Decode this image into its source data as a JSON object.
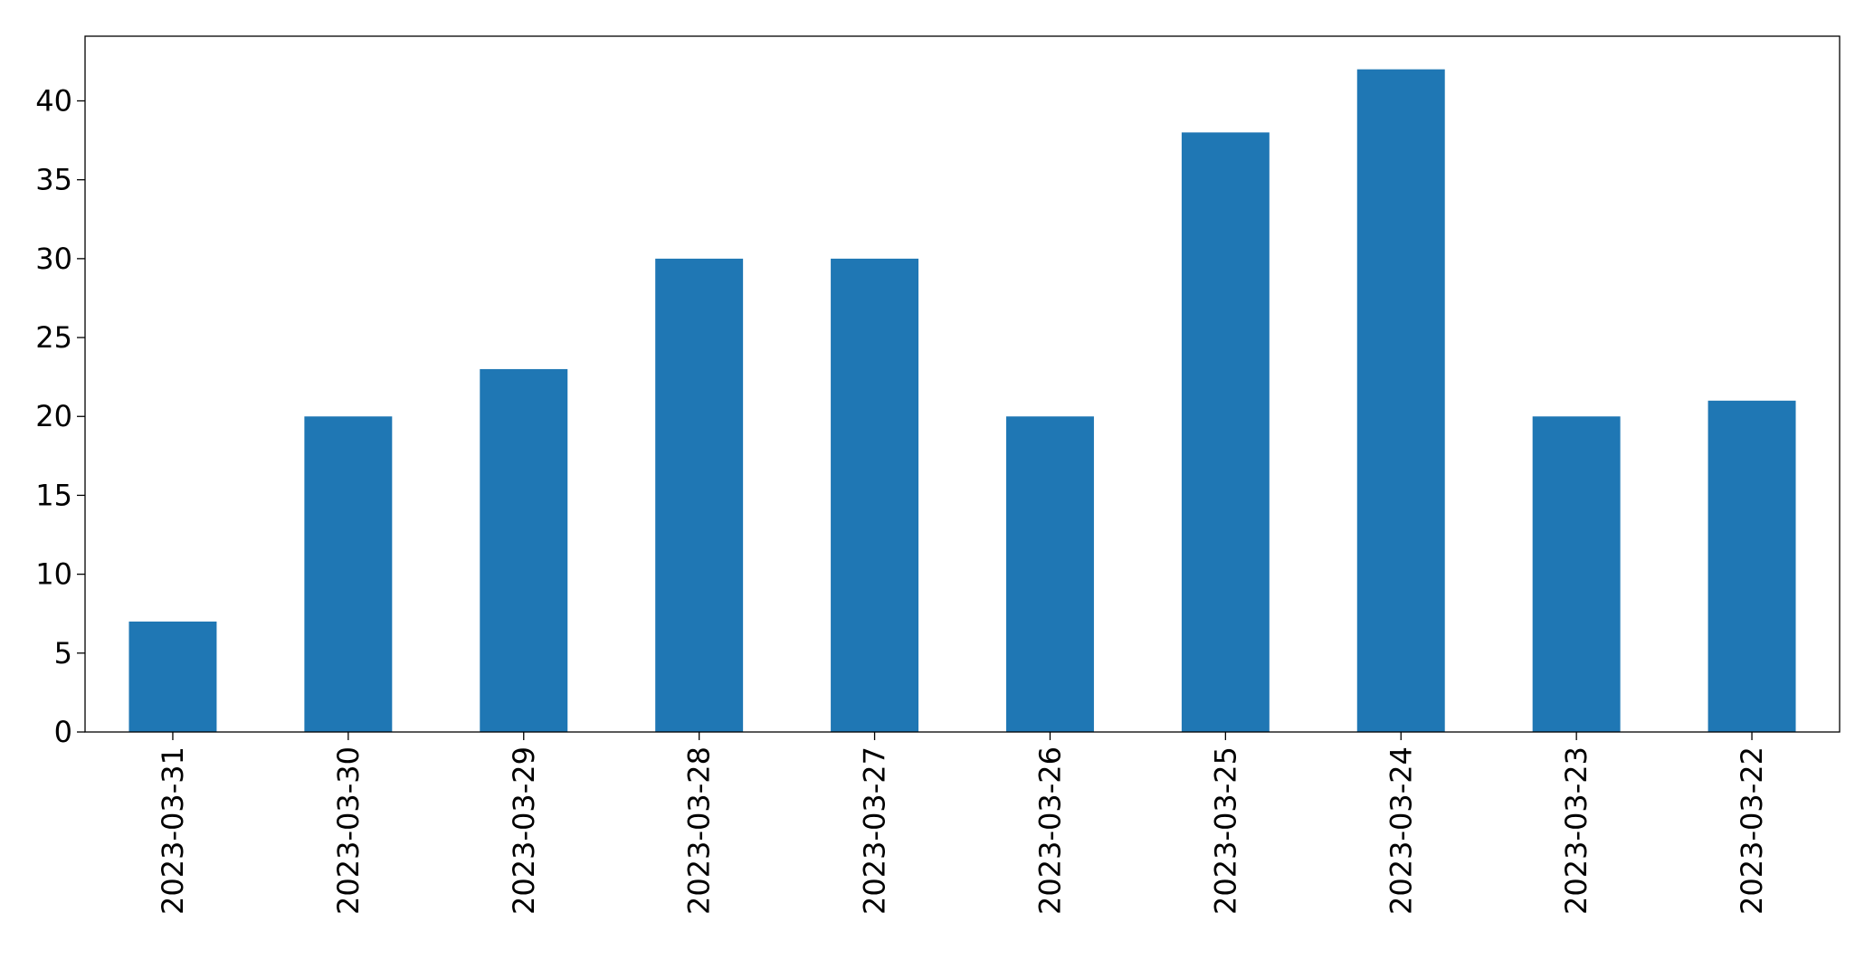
{
  "chart_data": {
    "type": "bar",
    "categories": [
      "2023-03-31",
      "2023-03-30",
      "2023-03-29",
      "2023-03-28",
      "2023-03-27",
      "2023-03-26",
      "2023-03-25",
      "2023-03-24",
      "2023-03-23",
      "2023-03-22"
    ],
    "values": [
      7,
      20,
      23,
      30,
      30,
      20,
      38,
      42,
      20,
      21
    ],
    "color": "#1f77b4",
    "ylim": [
      0,
      44.1
    ],
    "yticks": [
      0,
      5,
      10,
      15,
      20,
      25,
      30,
      35,
      40
    ],
    "grid": false
  }
}
